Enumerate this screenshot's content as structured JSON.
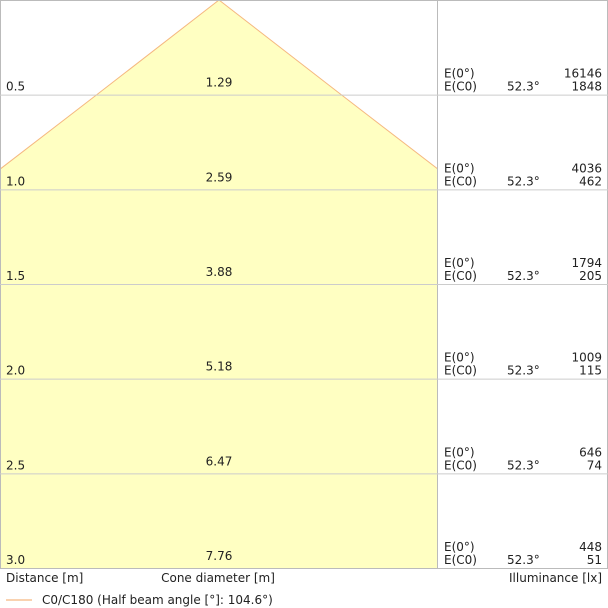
{
  "chart_data": {
    "type": "cone",
    "distances": [
      {
        "value": 0.5,
        "label": "0.5"
      },
      {
        "value": 1,
        "label": "1.0"
      },
      {
        "value": 1.5,
        "label": "1.5"
      },
      {
        "value": 2,
        "label": "2.0"
      },
      {
        "value": 2.5,
        "label": "2.5"
      },
      {
        "value": 3,
        "label": "3.0"
      }
    ],
    "diameters": [
      1.29,
      2.59,
      3.88,
      5.18,
      6.47,
      7.76
    ],
    "e0_label": "E(0°)",
    "ec0_label": "E(C0)",
    "angle": "52.3°",
    "e0": [
      16146,
      4036,
      1794,
      1009,
      646,
      448
    ],
    "ec0": [
      1848,
      462,
      205,
      115,
      74,
      51
    ],
    "x_label_distance": "Distance [m]",
    "x_label_diameter": "Cone diameter [m]",
    "x_label_illuminance": "Illuminance [lx]",
    "legend": "C0/C180 (Half beam angle [°]: 104.6°)",
    "fill_color": "#ffffc2",
    "edge_color": "#f5b880"
  }
}
